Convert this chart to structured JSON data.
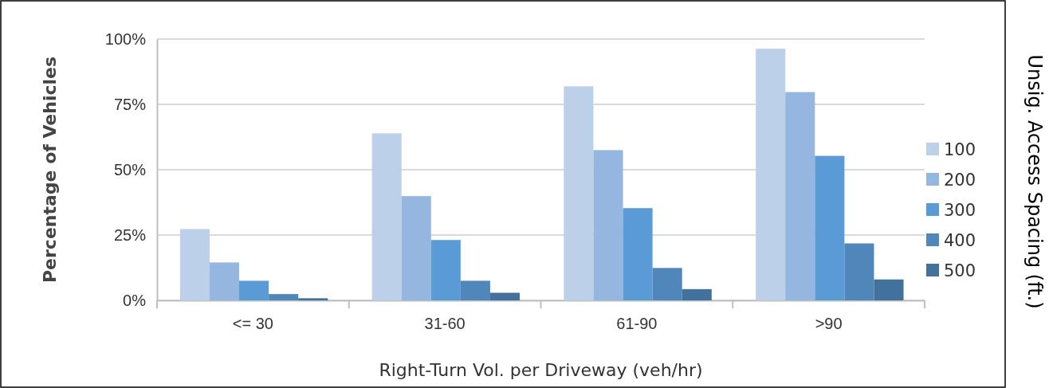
{
  "chart_data": {
    "type": "bar",
    "xlabel": "Right-Turn Vol. per Driveway (veh/hr)",
    "ylabel": "Percentage of Vehicles",
    "legend_title": "Unsig. Access Spacing (ft.)",
    "categories": [
      "<= 30",
      "31-60",
      "61-90",
      ">90"
    ],
    "series": [
      {
        "name": "100",
        "color": "#bdd0e9",
        "values": [
          27.3,
          63.9,
          81.9,
          96.3
        ]
      },
      {
        "name": "200",
        "color": "#95b7df",
        "values": [
          14.5,
          39.9,
          57.5,
          79.7
        ]
      },
      {
        "name": "300",
        "color": "#5b9bd5",
        "values": [
          7.5,
          23.1,
          35.3,
          55.3
        ]
      },
      {
        "name": "400",
        "color": "#4f87bb",
        "values": [
          2.4,
          7.5,
          12.4,
          21.8
        ]
      },
      {
        "name": "500",
        "color": "#41719c",
        "values": [
          0.8,
          2.9,
          4.3,
          8.0
        ]
      }
    ],
    "ylim": [
      0,
      100
    ],
    "yticks": [
      {
        "value": 0,
        "label": "0%"
      },
      {
        "value": 25,
        "label": "25%"
      },
      {
        "value": 50,
        "label": "50%"
      },
      {
        "value": 75,
        "label": "75%"
      },
      {
        "value": 100,
        "label": "100%"
      }
    ],
    "grid": "y",
    "legend": "right"
  }
}
